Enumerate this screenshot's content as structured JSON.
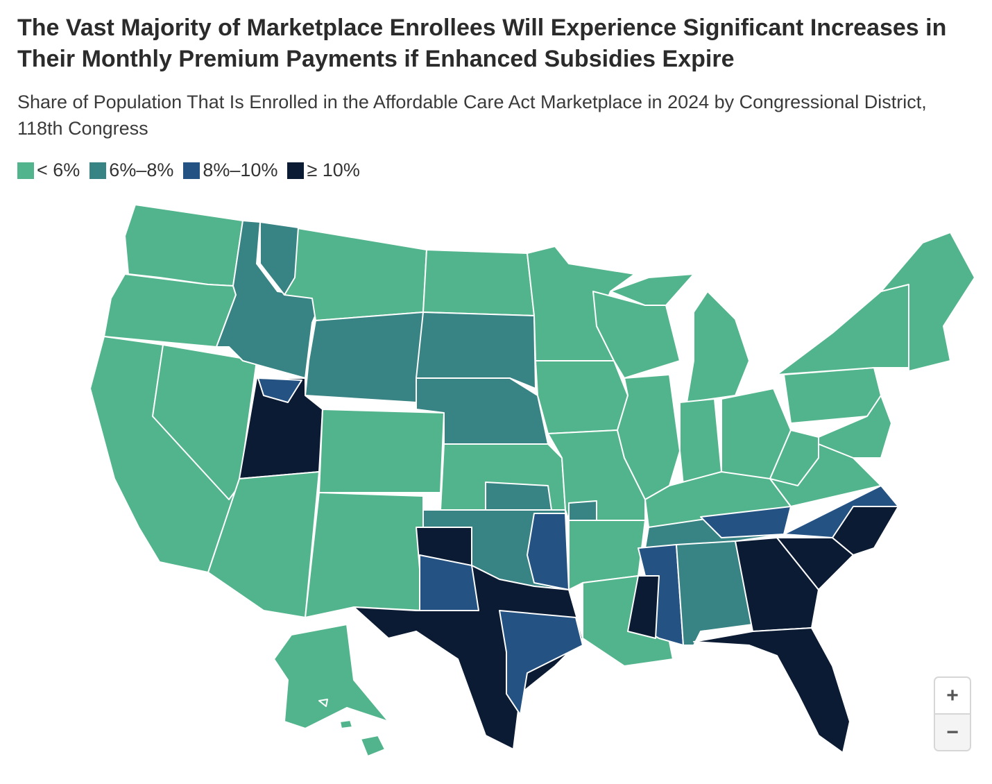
{
  "title": "The Vast Majority of Marketplace Enrollees Will Experience Significant Increases in Their Monthly Premium Payments if Enhanced Subsidies Expire",
  "subtitle": "Share of Population That Is Enrolled in the Affordable Care Act Marketplace in 2024 by Congressional District, 118th Congress",
  "legend": [
    {
      "label": "< 6%",
      "color": "#52b48c"
    },
    {
      "label": "6%–8%",
      "color": "#388383"
    },
    {
      "label": "8%–10%",
      "color": "#235283"
    },
    {
      "label": "≥ 10%",
      "color": "#0b1b33"
    }
  ],
  "zoom_controls": {
    "zoom_in": "+",
    "zoom_out": "−"
  }
}
